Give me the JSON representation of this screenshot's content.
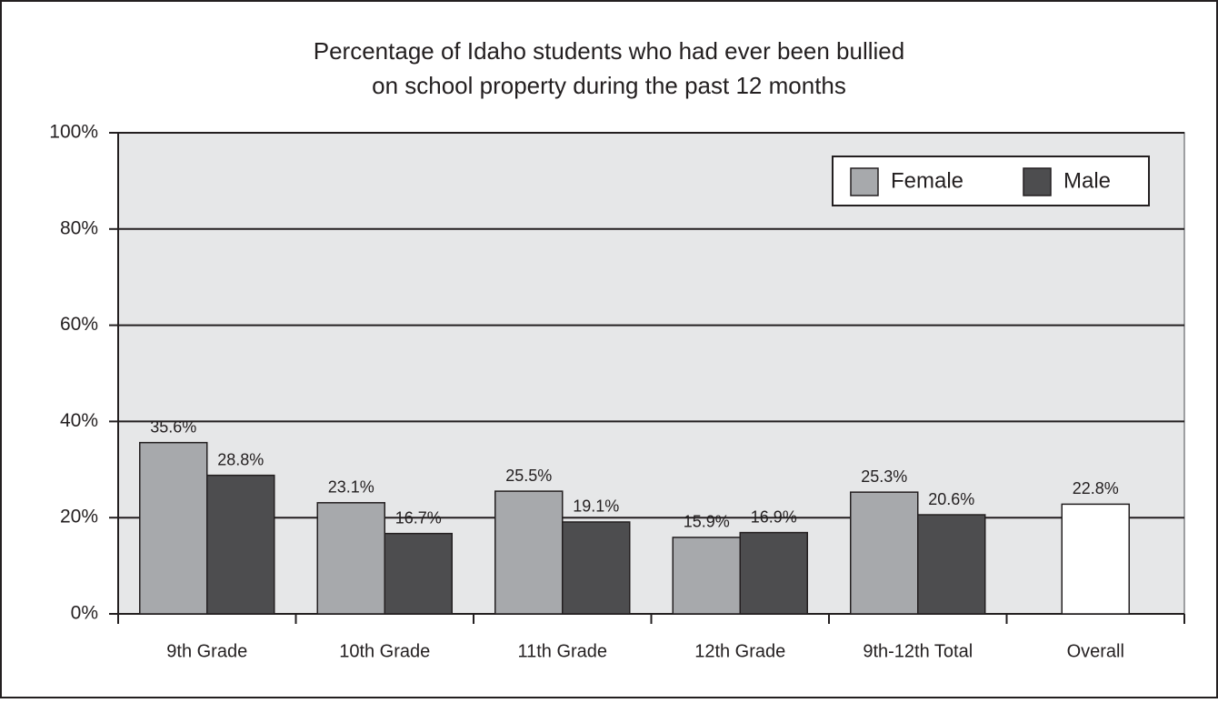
{
  "chart_data": {
    "type": "bar",
    "title": [
      "Percentage of Idaho students who had ever been bullied",
      "on school property during the past 12 months"
    ],
    "categories": [
      "9th Grade",
      "10th Grade",
      "11th Grade",
      "12th Grade",
      "9th-12th Total",
      "Overall"
    ],
    "series": [
      {
        "name": "Female",
        "color": "#a7a9ac",
        "values": [
          35.6,
          23.1,
          25.5,
          15.9,
          25.3,
          null
        ],
        "value_labels": [
          "35.6%",
          "23.1%",
          "25.5%",
          "15.9%",
          "25.3%",
          null
        ]
      },
      {
        "name": "Male",
        "color": "#4d4d4f",
        "values": [
          28.8,
          16.7,
          19.1,
          16.9,
          20.6,
          null
        ],
        "value_labels": [
          "28.8%",
          "16.7%",
          "19.1%",
          "16.9%",
          "20.6%",
          null
        ]
      },
      {
        "color": "#ffffff",
        "values": [
          null,
          null,
          null,
          null,
          null,
          22.8
        ],
        "value_labels": [
          null,
          null,
          null,
          null,
          null,
          "22.8%"
        ]
      }
    ],
    "ylim": [
      0,
      100
    ],
    "yticks": [
      {
        "value": 0,
        "label": "0%"
      },
      {
        "value": 20,
        "label": "20%"
      },
      {
        "value": 40,
        "label": "40%"
      },
      {
        "value": 60,
        "label": "60%"
      },
      {
        "value": 80,
        "label": "80%"
      },
      {
        "value": 100,
        "label": "100%"
      }
    ],
    "grid": true,
    "legend": "top-right"
  }
}
